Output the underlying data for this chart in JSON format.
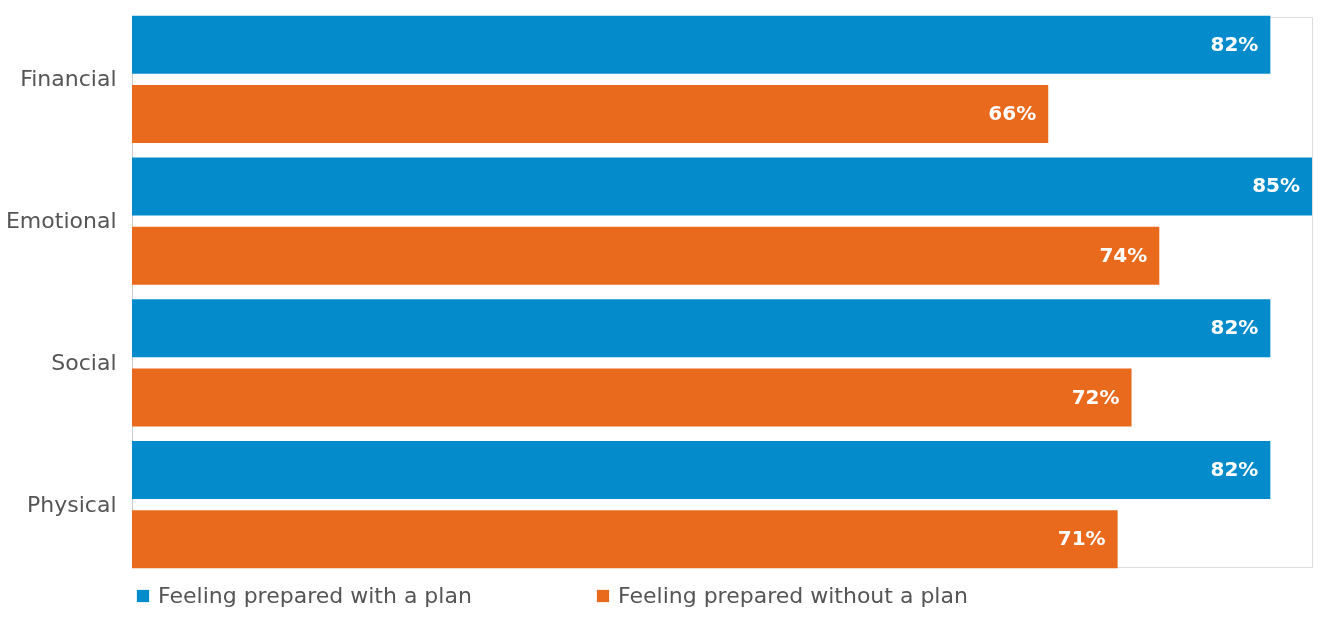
{
  "chart_data": {
    "type": "bar",
    "orientation": "horizontal",
    "categories": [
      "Financial",
      "Emotional",
      "Social",
      "Physical"
    ],
    "series": [
      {
        "name": "Feeling prepared with a plan",
        "color": "#038bcb",
        "values": [
          82,
          85,
          82,
          82
        ],
        "value_labels": [
          "82%",
          "85%",
          "82%",
          "82%"
        ]
      },
      {
        "name": "Feeling prepared without a plan",
        "color": "#e96a1c",
        "values": [
          66,
          74,
          72,
          71
        ],
        "value_labels": [
          "66%",
          "74%",
          "72%",
          "71%"
        ]
      }
    ],
    "xlim": [
      0,
      85
    ],
    "tick_labels": "y",
    "grid": false,
    "legend": "bottom"
  }
}
